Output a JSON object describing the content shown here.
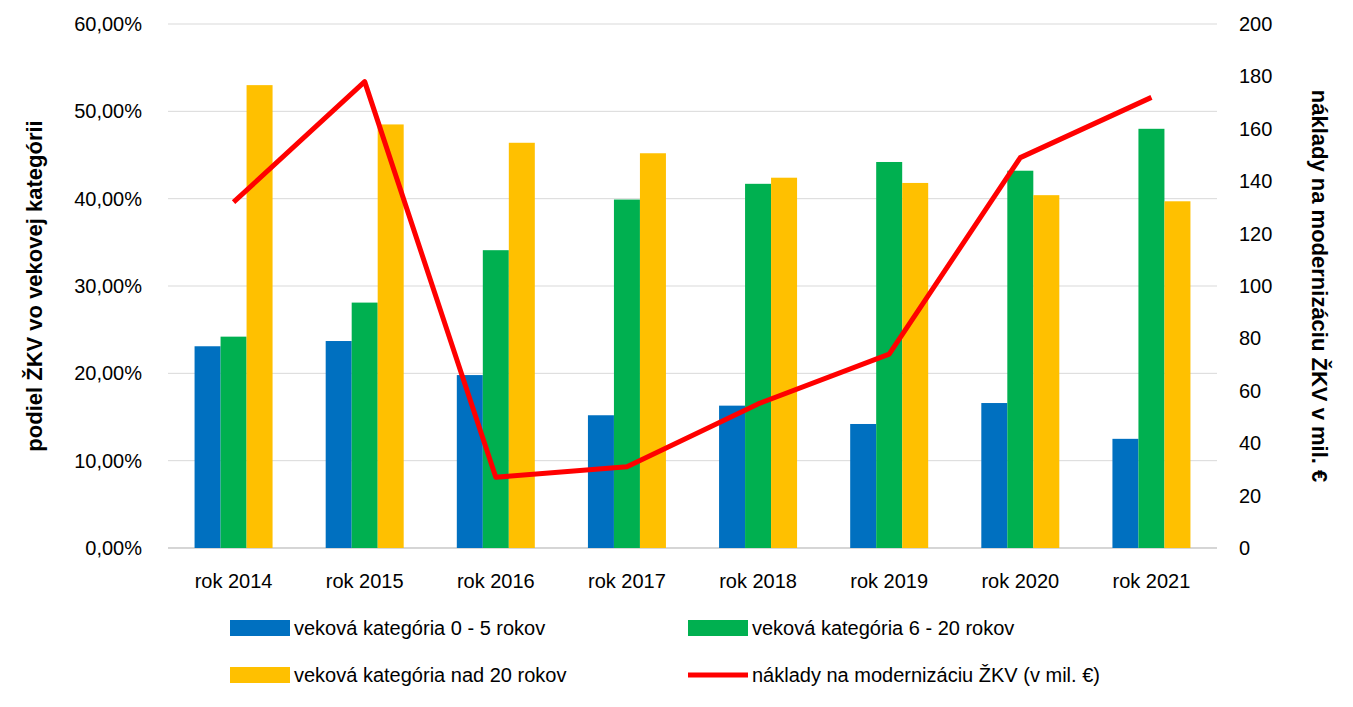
{
  "chart_data": {
    "type": "bar",
    "categories": [
      "rok 2014",
      "rok 2015",
      "rok 2016",
      "rok 2017",
      "rok 2018",
      "rok 2019",
      "rok 2020",
      "rok 2021"
    ],
    "ylabel": "podiel ŽKV vo vekovej kategórii",
    "y2label": "náklady na modernizáciu ŽKV v mil. €",
    "ylim": [
      0,
      60
    ],
    "yticks": [
      {
        "value": 0,
        "label": "0,00%"
      },
      {
        "value": 10,
        "label": "10,00%"
      },
      {
        "value": 20,
        "label": "20,00%"
      },
      {
        "value": 30,
        "label": "30,00%"
      },
      {
        "value": 40,
        "label": "40,00%"
      },
      {
        "value": 50,
        "label": "50,00%"
      },
      {
        "value": 60,
        "label": "60,00%"
      }
    ],
    "y2lim": [
      0,
      200
    ],
    "y2ticks": [
      0,
      20,
      40,
      60,
      80,
      100,
      120,
      140,
      160,
      180,
      200
    ],
    "grid": true,
    "legend": "bottom",
    "series": [
      {
        "name": "veková kategória 0 - 5 rokov",
        "type": "bar",
        "color": "#0070c0",
        "values": [
          23.1,
          23.7,
          19.8,
          15.2,
          16.3,
          14.2,
          16.6,
          12.5
        ]
      },
      {
        "name": "veková kategória 6 - 20 rokov",
        "type": "bar",
        "color": "#00b050",
        "values": [
          24.2,
          28.1,
          34.1,
          39.9,
          41.7,
          44.2,
          43.2,
          48.0
        ]
      },
      {
        "name": "veková kategória nad 20 rokov",
        "type": "bar",
        "color": "#ffc000",
        "values": [
          53.0,
          48.5,
          46.4,
          45.2,
          42.4,
          41.8,
          40.4,
          39.7
        ]
      },
      {
        "name": "náklady na modernizáciu ŽKV (v mil. €)",
        "type": "line",
        "axis": "y2",
        "color": "#ff0000",
        "values": [
          132,
          178,
          27,
          31,
          55,
          74,
          149,
          172
        ]
      }
    ]
  }
}
